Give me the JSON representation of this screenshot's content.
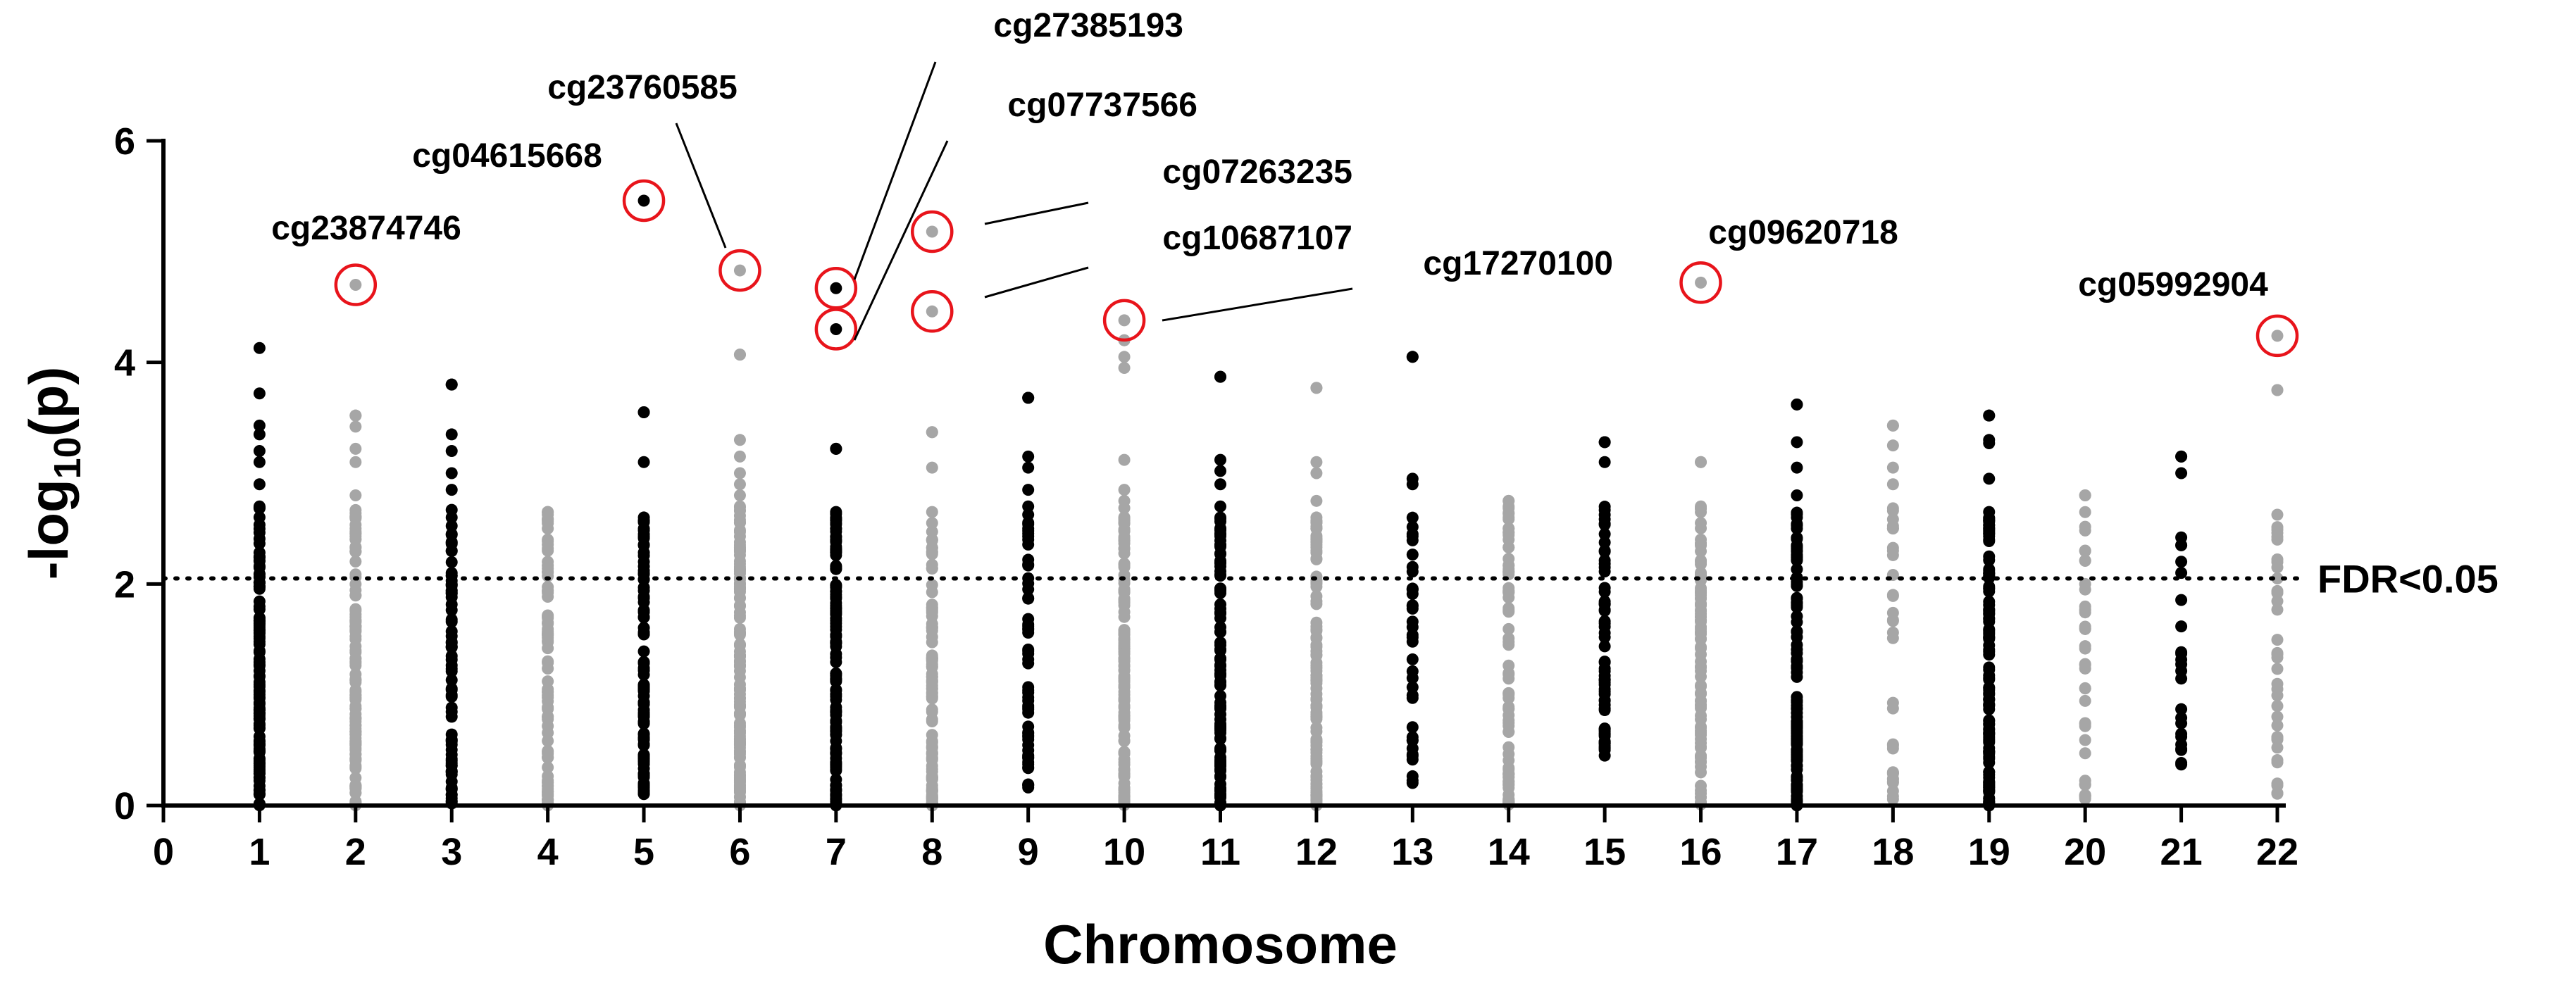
{
  "chart_data": {
    "type": "scatter",
    "title": "",
    "xlabel": "Chromosome",
    "ylabel_prefix": "-log",
    "ylabel_sub": "10",
    "ylabel_suffix": "(p)",
    "xlim": [
      0,
      22
    ],
    "ylim": [
      0,
      6
    ],
    "x_ticks": [
      0,
      1,
      2,
      3,
      4,
      5,
      6,
      7,
      8,
      9,
      10,
      11,
      12,
      13,
      14,
      15,
      16,
      17,
      18,
      19,
      20,
      21,
      22
    ],
    "y_ticks": [
      0,
      2,
      4,
      6
    ],
    "grid": false,
    "colors": {
      "odd": "#000000",
      "even": "#a6a6a6",
      "highlight": "#e8141b",
      "axis": "#000000"
    },
    "threshold": {
      "value": 2.05,
      "label": "FDR<0.05",
      "style": "dotted"
    },
    "chromosomes": [
      {
        "chr": 1,
        "color_group": "odd",
        "max": 4.13,
        "min": 0.0,
        "n": 120,
        "extra": [
          3.72,
          3.43,
          3.35,
          3.2,
          3.1,
          2.9,
          2.7
        ]
      },
      {
        "chr": 2,
        "color_group": "even",
        "max": 3.52,
        "min": 0.0,
        "n": 110,
        "extra": [
          3.52,
          3.42,
          3.22,
          3.1,
          2.8,
          2.6,
          2.5,
          2.4
        ]
      },
      {
        "chr": 3,
        "color_group": "odd",
        "max": 3.8,
        "min": 0.0,
        "n": 70,
        "extra": [
          3.8,
          3.35,
          3.2,
          3.0,
          2.85,
          2.6,
          2.45,
          2.3
        ]
      },
      {
        "chr": 4,
        "color_group": "even",
        "max": 2.65,
        "min": 0.0,
        "n": 80,
        "extra": [
          2.65,
          2.5,
          2.4,
          2.3,
          2.2
        ]
      },
      {
        "chr": 5,
        "color_group": "odd",
        "max": 3.55,
        "min": 0.1,
        "n": 90,
        "extra": [
          3.55,
          3.1,
          2.6,
          2.5,
          2.2
        ]
      },
      {
        "chr": 6,
        "color_group": "even",
        "max": 4.07,
        "min": 0.0,
        "n": 130,
        "extra": [
          4.07,
          3.3,
          3.15,
          3.0,
          2.9,
          2.8,
          2.7
        ]
      },
      {
        "chr": 7,
        "color_group": "odd",
        "max": 3.22,
        "min": 0.0,
        "n": 110,
        "extra": [
          3.22,
          2.65,
          2.6,
          2.55,
          2.5
        ]
      },
      {
        "chr": 8,
        "color_group": "even",
        "max": 3.37,
        "min": 0.0,
        "n": 100,
        "extra": [
          3.37,
          3.05,
          2.65,
          2.55,
          2.4
        ]
      },
      {
        "chr": 9,
        "color_group": "odd",
        "max": 3.68,
        "min": 0.15,
        "n": 55,
        "extra": [
          3.68,
          3.15,
          3.05,
          2.85,
          2.7,
          2.5,
          2.4
        ]
      },
      {
        "chr": 10,
        "color_group": "even",
        "max": 4.2,
        "min": 0.0,
        "n": 130,
        "extra": [
          4.2,
          4.05,
          3.95,
          3.12,
          2.85,
          2.75,
          2.55
        ]
      },
      {
        "chr": 11,
        "color_group": "odd",
        "max": 3.87,
        "min": 0.0,
        "n": 100,
        "extra": [
          3.87,
          3.12,
          3.02,
          2.9,
          2.7,
          2.6,
          2.45
        ]
      },
      {
        "chr": 12,
        "color_group": "even",
        "max": 3.77,
        "min": 0.0,
        "n": 100,
        "extra": [
          3.77,
          3.1,
          3.0,
          2.75,
          2.6,
          2.5,
          2.3
        ]
      },
      {
        "chr": 13,
        "color_group": "odd",
        "max": 4.05,
        "min": 0.2,
        "n": 35,
        "extra": [
          4.05,
          2.95,
          2.9,
          1.95,
          1.8
        ]
      },
      {
        "chr": 14,
        "color_group": "even",
        "max": 2.75,
        "min": 0.0,
        "n": 80,
        "extra": [
          2.75,
          2.7,
          2.6,
          2.5,
          2.4
        ]
      },
      {
        "chr": 15,
        "color_group": "odd",
        "max": 3.28,
        "min": 0.45,
        "n": 60,
        "extra": [
          3.28,
          3.1,
          2.45,
          2.3,
          2.15
        ]
      },
      {
        "chr": 16,
        "color_group": "even",
        "max": 3.1,
        "min": 0.0,
        "n": 90,
        "extra": [
          3.1,
          2.7,
          2.55,
          2.4,
          2.2
        ]
      },
      {
        "chr": 17,
        "color_group": "odd",
        "max": 3.62,
        "min": 0.0,
        "n": 110,
        "extra": [
          3.62,
          3.28,
          3.05,
          2.8,
          2.6,
          2.5,
          2.3
        ]
      },
      {
        "chr": 18,
        "color_group": "even",
        "max": 3.43,
        "min": 0.05,
        "n": 30,
        "extra": [
          3.43,
          3.25,
          3.05,
          2.9,
          2.5,
          2.3
        ]
      },
      {
        "chr": 19,
        "color_group": "odd",
        "max": 3.52,
        "min": 0.0,
        "n": 120,
        "extra": [
          3.52,
          3.3,
          3.27,
          2.95,
          2.65,
          2.5,
          2.4
        ]
      },
      {
        "chr": 20,
        "color_group": "even",
        "max": 2.8,
        "min": 0.05,
        "n": 35,
        "extra": [
          2.8,
          2.0,
          1.95,
          1.6
        ]
      },
      {
        "chr": 21,
        "color_group": "odd",
        "max": 3.15,
        "min": 0.3,
        "n": 20,
        "extra": [
          3.15,
          3.0,
          2.42,
          2.35,
          2.1
        ]
      },
      {
        "chr": 22,
        "color_group": "even",
        "max": 3.75,
        "min": 0.1,
        "n": 35,
        "extra": [
          3.75,
          2.4,
          2.15,
          2.05
        ]
      }
    ],
    "highlighted": [
      {
        "probe": "cg23874746",
        "chr": 2,
        "value": 4.7,
        "color_group": "even"
      },
      {
        "probe": "cg04615668",
        "chr": 5,
        "value": 5.46,
        "color_group": "odd"
      },
      {
        "probe": "cg23760585",
        "chr": 6,
        "value": 4.83,
        "color_group": "even"
      },
      {
        "probe": "cg27385193",
        "chr": 7,
        "value": 4.67,
        "color_group": "odd"
      },
      {
        "probe": "cg07737566",
        "chr": 7,
        "value": 4.3,
        "color_group": "odd"
      },
      {
        "probe": "cg07263235",
        "chr": 8,
        "value": 5.18,
        "color_group": "even"
      },
      {
        "probe": "cg10687107",
        "chr": 8,
        "value": 4.46,
        "color_group": "even"
      },
      {
        "probe": "cg17270100",
        "chr": 10,
        "value": 4.38,
        "color_group": "even"
      },
      {
        "probe": "cg09620718",
        "chr": 16,
        "value": 4.72,
        "color_group": "even"
      },
      {
        "probe": "cg05992904",
        "chr": 22,
        "value": 4.24,
        "color_group": "even"
      }
    ]
  }
}
